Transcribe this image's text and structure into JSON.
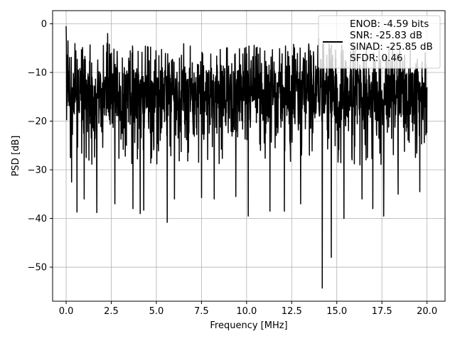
{
  "chart_data": {
    "type": "line",
    "xlabel": "Frequency [MHz]",
    "ylabel": "PSD [dB]",
    "xlim": [
      -0.75,
      21.0
    ],
    "ylim": [
      -57.0,
      2.7
    ],
    "xticks": [
      0.0,
      2.5,
      5.0,
      7.5,
      10.0,
      12.5,
      15.0,
      17.5,
      20.0
    ],
    "xtick_labels": [
      "0.0",
      "2.5",
      "5.0",
      "7.5",
      "10.0",
      "12.5",
      "15.0",
      "17.5",
      "20.0"
    ],
    "yticks": [
      0,
      -10,
      -20,
      -30,
      -40,
      -50
    ],
    "ytick_labels": [
      "0",
      "−10",
      "−20",
      "−30",
      "−40",
      "−50"
    ],
    "grid": true,
    "legend": {
      "placement": "top-right",
      "entries": [
        "ENOB: -4.59 bits",
        "SNR: -25.83 dB",
        "SINAD: -25.85 dB",
        "SFDR: 0.46"
      ]
    },
    "series": [
      {
        "color": "#000000",
        "x_start": 0.0,
        "x_end": 20.0,
        "num_points": 1600,
        "envelope_min_typical": -27,
        "envelope_max_typical": -4,
        "median_db": -15,
        "peak_points": [
          [
            0.0,
            -0.5
          ],
          [
            0.1,
            -3.5
          ],
          [
            2.3,
            -2.0
          ],
          [
            14.0,
            -3.0
          ]
        ],
        "dip_points": [
          [
            0.3,
            -32.5
          ],
          [
            0.6,
            -38.7
          ],
          [
            1.0,
            -36.0
          ],
          [
            1.7,
            -38.8
          ],
          [
            2.7,
            -37.0
          ],
          [
            3.7,
            -38.0
          ],
          [
            4.1,
            -39.0
          ],
          [
            4.3,
            -38.3
          ],
          [
            5.6,
            -40.8
          ],
          [
            6.0,
            -36.0
          ],
          [
            7.5,
            -35.7
          ],
          [
            8.2,
            -36.0
          ],
          [
            9.4,
            -35.5
          ],
          [
            10.1,
            -39.5
          ],
          [
            11.3,
            -38.5
          ],
          [
            12.1,
            -38.5
          ],
          [
            13.0,
            -37.0
          ],
          [
            14.2,
            -54.3
          ],
          [
            14.7,
            -48.0
          ],
          [
            15.4,
            -40.0
          ],
          [
            16.4,
            -36.0
          ],
          [
            17.0,
            -38.0
          ],
          [
            17.6,
            -39.5
          ],
          [
            18.4,
            -35.0
          ],
          [
            19.6,
            -34.5
          ]
        ]
      }
    ]
  }
}
